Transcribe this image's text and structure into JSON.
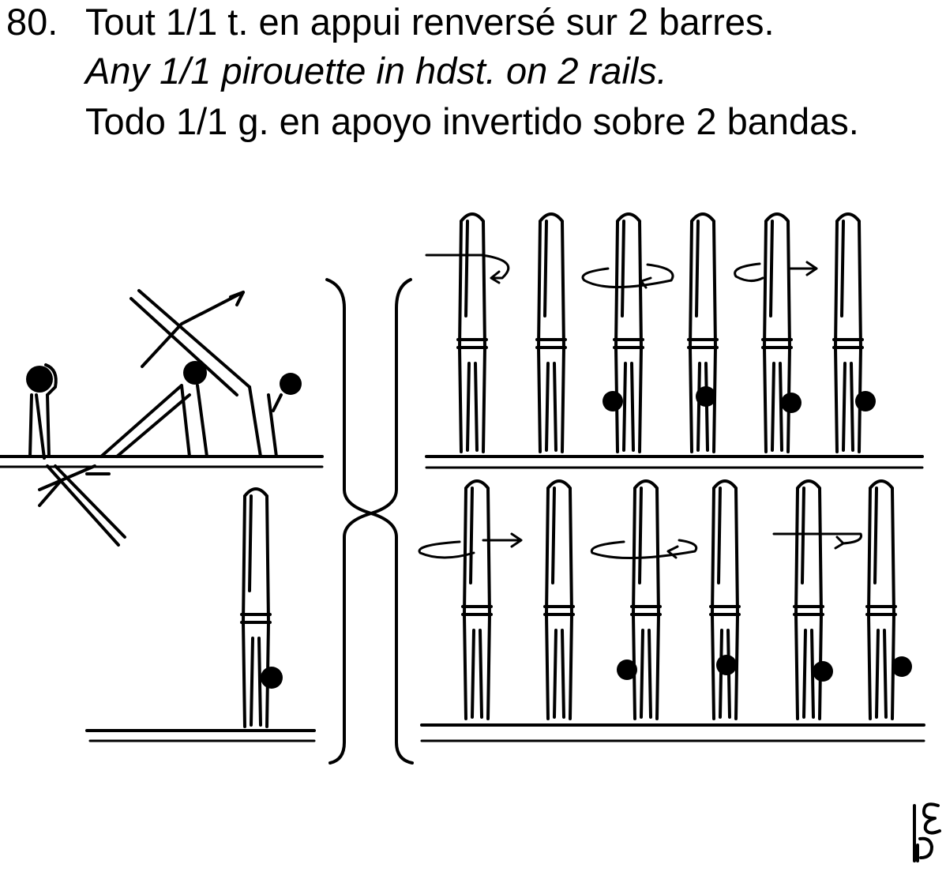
{
  "element": {
    "number": "80.",
    "title_fr": "Tout 1/1 t. en appui renversé sur 2 barres.",
    "title_en": "Any 1/1 pirouette in hdst. on 2 rails.",
    "title_es": "Todo 1/1 g. en apoyo invertido sobre 2 bandas."
  },
  "value_symbol": "E"
}
